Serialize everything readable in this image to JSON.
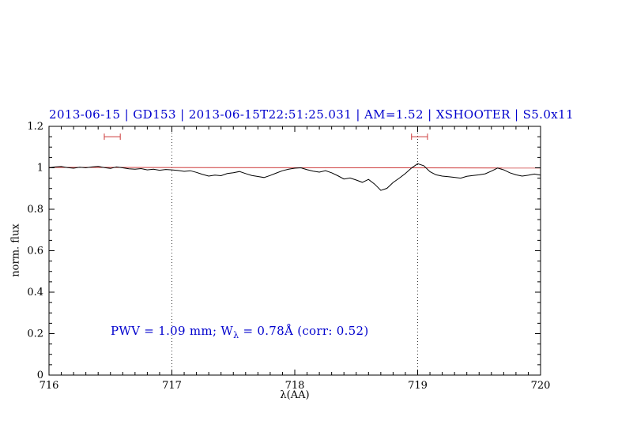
{
  "header": {
    "title": "2013-06-15 | GD153 | 2013-06-15T22:51:25.031 | AM=1.52 | XSHOOTER | S5.0x11"
  },
  "annotation": {
    "prefix": "PWV = 1.09 mm; W",
    "sub": "λ",
    "suffix": " = 0.78Å (corr: 0.52)"
  },
  "colors": {
    "title": "#0000cd",
    "annotation": "#0000cd",
    "spectrum": "#000000",
    "continuum": "#cd3a3a",
    "marker": "#cd3a3a",
    "gridline": "#333333",
    "frame": "#000000"
  },
  "chart_data": {
    "type": "line",
    "title": "2013-06-15 | GD153 | 2013-06-15T22:51:25.031 | AM=1.52 | XSHOOTER | S5.0x11",
    "xlabel": "λ(AA)",
    "ylabel": "norm. flux",
    "xlim": [
      716,
      720
    ],
    "ylim": [
      0,
      1.2
    ],
    "xticks": [
      716,
      717,
      718,
      719,
      720
    ],
    "xtick_labels": [
      "716",
      "717",
      "718",
      "719",
      "720"
    ],
    "yticks": [
      0,
      0.2,
      0.4,
      0.6,
      0.8,
      1,
      1.2
    ],
    "ytick_labels": [
      "0",
      "0.2",
      "0.4",
      "0.6",
      "0.8",
      "1",
      "1.2"
    ],
    "x_minor_step": 0.1,
    "y_minor_step": 0.05,
    "grid": false,
    "legend": "none",
    "vlines": [
      717,
      719
    ],
    "continuum": {
      "x": [
        716,
        720
      ],
      "y": [
        1.002,
        0.999
      ]
    },
    "markers": [
      {
        "x1": 716.45,
        "x2": 716.58,
        "y": 1.15
      },
      {
        "x1": 718.95,
        "x2": 719.08,
        "y": 1.15
      }
    ],
    "annotation_text": "PWV = 1.09 mm; Wλ = 0.78Å (corr: 0.52)",
    "series": [
      {
        "name": "spectrum",
        "x": [
          716,
          716.05,
          716.1,
          716.15,
          716.2,
          716.25,
          716.3,
          716.35,
          716.4,
          716.45,
          716.5,
          716.55,
          716.6,
          716.65,
          716.7,
          716.75,
          716.8,
          716.85,
          716.9,
          716.95,
          717,
          717.05,
          717.1,
          717.15,
          717.2,
          717.25,
          717.3,
          717.35,
          717.4,
          717.45,
          717.5,
          717.55,
          717.6,
          717.65,
          717.7,
          717.75,
          717.8,
          717.85,
          717.9,
          717.95,
          718,
          718.05,
          718.1,
          718.15,
          718.2,
          718.25,
          718.3,
          718.35,
          718.4,
          718.45,
          718.5,
          718.55,
          718.6,
          718.65,
          718.7,
          718.75,
          718.8,
          718.85,
          718.9,
          718.95,
          719,
          719.05,
          719.1,
          719.15,
          719.2,
          719.25,
          719.3,
          719.35,
          719.4,
          719.45,
          719.5,
          719.55,
          719.6,
          719.65,
          719.7,
          719.75,
          719.8,
          719.85,
          719.9,
          719.95,
          720
        ],
        "y": [
          1.0,
          1.004,
          1.006,
          1.001,
          0.998,
          1.003,
          1.0,
          1.004,
          1.007,
          1.001,
          0.997,
          1.004,
          1.0,
          0.995,
          0.993,
          0.996,
          0.99,
          0.993,
          0.988,
          0.992,
          0.99,
          0.987,
          0.983,
          0.986,
          0.978,
          0.968,
          0.96,
          0.965,
          0.962,
          0.972,
          0.976,
          0.982,
          0.972,
          0.963,
          0.958,
          0.953,
          0.963,
          0.975,
          0.986,
          0.993,
          0.998,
          1.0,
          0.991,
          0.984,
          0.979,
          0.986,
          0.976,
          0.962,
          0.946,
          0.951,
          0.941,
          0.93,
          0.944,
          0.921,
          0.891,
          0.901,
          0.929,
          0.95,
          0.972,
          0.999,
          1.02,
          1.01,
          0.981,
          0.966,
          0.96,
          0.957,
          0.954,
          0.95,
          0.959,
          0.963,
          0.966,
          0.971,
          0.984,
          0.999,
          0.99,
          0.976,
          0.966,
          0.96,
          0.964,
          0.97,
          0.965
        ]
      }
    ]
  }
}
